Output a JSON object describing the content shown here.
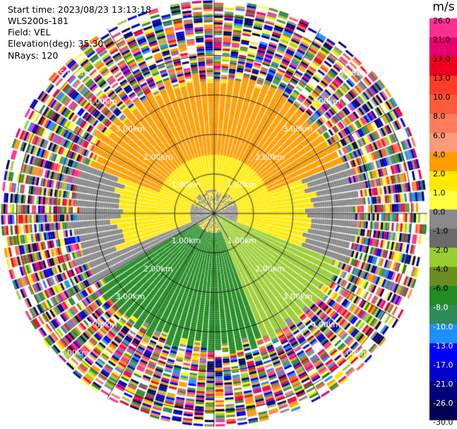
{
  "header": {
    "start_time": "Start time: 2023/08/23 13:13:18",
    "instrument": "WLS200s-181",
    "field": "Field: VEL",
    "elevation": "Elevation(deg): 35.30",
    "nrays": "NRays: 120"
  },
  "colorbar": {
    "title": "m/s",
    "ticks": [
      "26.0",
      "21.0",
      "17.0",
      "13.0",
      "10.0",
      "8.0",
      "6.0",
      "4.0",
      "2.0",
      "1.0",
      "0.0",
      "-1.0",
      "-2.0",
      "-4.0",
      "-6.0",
      "-8.0",
      "-10.0",
      "-13.0",
      "-17.0",
      "-21.0",
      "-26.0",
      "-30.0"
    ],
    "colors": [
      "#ff2f92",
      "#e8006e",
      "#f0001f",
      "#ff3c28",
      "#ff5a3c",
      "#ff7b5e",
      "#ff9a7a",
      "#ff9d00",
      "#ffe900",
      "#ffff40",
      "#8a8a8a",
      "#6b6b6b",
      "#9acd32",
      "#6b8e23",
      "#228b22",
      "#2e8b57",
      "#1e90ff",
      "#0000ff",
      "#0000c8",
      "#00007a",
      "#000050"
    ]
  },
  "chart_data": {
    "type": "ppi",
    "field": "VEL",
    "units": "m/s",
    "nrays": 120,
    "elevation_deg": 35.3,
    "range_rings_km": [
      1.0,
      2.0,
      3.0,
      4.0,
      5.0
    ],
    "ring_labels": [
      "1.00km",
      "2.00km",
      "3.00km",
      "4.00km",
      "5.00km"
    ],
    "spoke_angles_deg": [
      0,
      30,
      60,
      90,
      120,
      150,
      180,
      210,
      240,
      270,
      300,
      330
    ],
    "max_range_km": 5.4,
    "velocity_regions": [
      {
        "sector_deg": [
          290,
          70
        ],
        "range_km": [
          1.5,
          3.4
        ],
        "velocity_ms": 6.0
      },
      {
        "sector_deg": [
          250,
          110
        ],
        "range_km": [
          0.6,
          2.5
        ],
        "velocity_ms": 2.0
      },
      {
        "sector_deg": [
          70,
          110
        ],
        "range_km": [
          0.0,
          3.7
        ],
        "velocity_ms": 0.0
      },
      {
        "sector_deg": [
          240,
          290
        ],
        "range_km": [
          0.0,
          3.6
        ],
        "velocity_ms": 0.0
      },
      {
        "sector_deg": [
          110,
          160
        ],
        "range_km": [
          0.0,
          3.4
        ],
        "velocity_ms": -2.0
      },
      {
        "sector_deg": [
          160,
          240
        ],
        "range_km": [
          0.5,
          3.4
        ],
        "velocity_ms": -6.0
      },
      {
        "sector_deg": [
          0,
          360
        ],
        "range_km": [
          3.4,
          5.4
        ],
        "velocity_ms": "noise"
      }
    ]
  }
}
